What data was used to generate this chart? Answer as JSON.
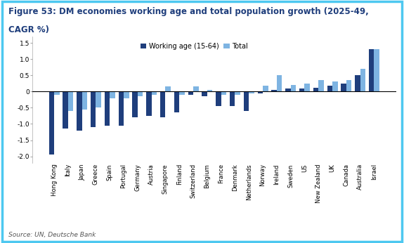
{
  "title_line1": "Figure 53: DM economies working age and total population growth (2025-49,",
  "title_line2": "CAGR %)",
  "source": "Source: UN, Deutsche Bank",
  "legend": [
    "Working age (15-64)",
    "Total"
  ],
  "colors": {
    "working_age": "#1F3E7C",
    "total": "#7EB4E2"
  },
  "categories": [
    "Hong Kong",
    "Italy",
    "Japan",
    "Greece",
    "Spain",
    "Portugal",
    "Germany",
    "Austria",
    "Singapore",
    "Finland",
    "Switzerland",
    "Belgium",
    "France",
    "Denmark",
    "Netherlands",
    "Norway",
    "Ireland",
    "Sweden",
    "US",
    "New Zealand",
    "UK",
    "Canada",
    "Australia",
    "Israel"
  ],
  "working_age": [
    -1.95,
    -1.15,
    -1.2,
    -1.1,
    -1.05,
    -1.05,
    -0.8,
    -0.75,
    -0.8,
    -0.65,
    -0.1,
    -0.15,
    -0.45,
    -0.45,
    -0.6,
    -0.05,
    0.05,
    0.1,
    0.1,
    0.12,
    0.18,
    0.25,
    0.5,
    1.3
  ],
  "total": [
    -0.1,
    -0.6,
    -0.55,
    -0.5,
    -0.2,
    -0.2,
    -0.15,
    -0.1,
    0.15,
    -0.1,
    0.15,
    0.05,
    -0.1,
    -0.1,
    -0.05,
    0.18,
    0.5,
    0.2,
    0.25,
    0.35,
    0.3,
    0.35,
    0.7,
    1.3
  ],
  "ylim": [
    -2.2,
    1.7
  ],
  "yticks": [
    -2.0,
    -1.5,
    -1.0,
    -0.5,
    0.0,
    0.5,
    1.0,
    1.5
  ],
  "background_color": "#FFFFFF",
  "border_color": "#4DC8F0",
  "title_color": "#1F3E7C",
  "title_fontsize": 8.5,
  "source_fontsize": 6.5,
  "bar_width": 0.38
}
